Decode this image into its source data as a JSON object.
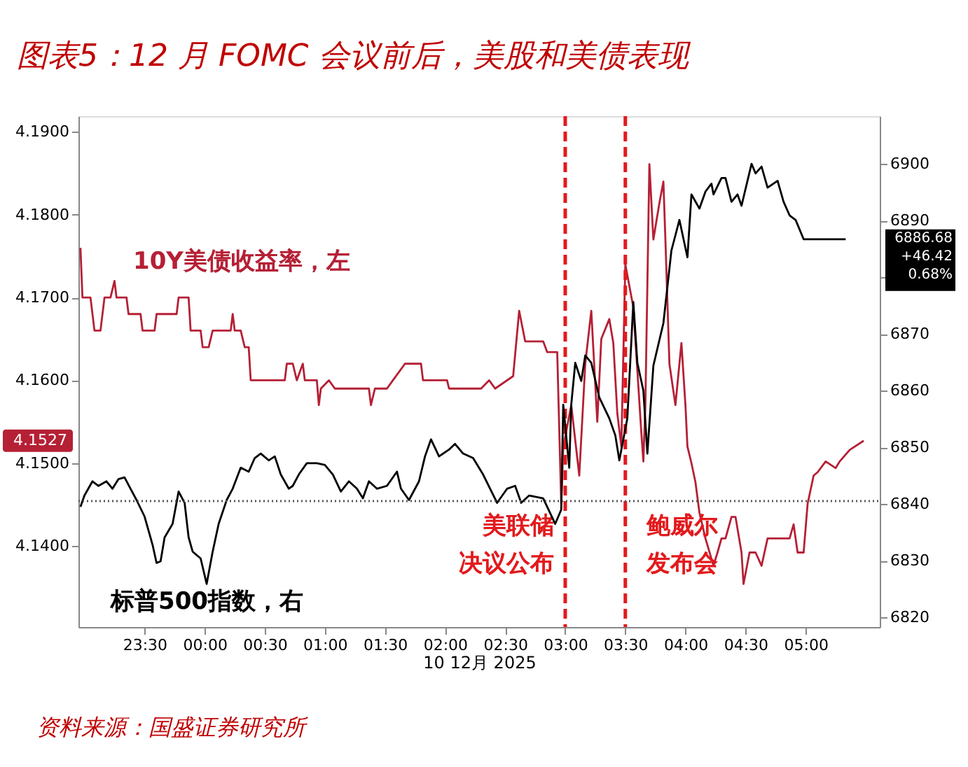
{
  "chart_data": {
    "type": "line",
    "title": "图表5：12 月 FOMC 会议前后，美股和美债表现",
    "xlabel": "10 12月 2025",
    "xlim": [
      "2025-12-09T22:57",
      "2025-12-10T05:37"
    ],
    "xticks": [
      {
        "value": "2025-12-09T23:30",
        "label": "23:30"
      },
      {
        "value": "2025-12-10T00:00",
        "label": "00:00"
      },
      {
        "value": "2025-12-10T00:30",
        "label": "00:30"
      },
      {
        "value": "2025-12-10T01:00",
        "label": "01:00"
      },
      {
        "value": "2025-12-10T01:30",
        "label": "01:30"
      },
      {
        "value": "2025-12-10T02:00",
        "label": "02:00"
      },
      {
        "value": "2025-12-10T02:30",
        "label": "02:30"
      },
      {
        "value": "2025-12-10T03:00",
        "label": "03:00"
      },
      {
        "value": "2025-12-10T03:30",
        "label": "03:30"
      },
      {
        "value": "2025-12-10T04:00",
        "label": "04:00"
      },
      {
        "value": "2025-12-10T04:30",
        "label": "04:30"
      },
      {
        "value": "2025-12-10T05:00",
        "label": "05:00"
      }
    ],
    "ylim": [
      4.1302,
      4.1919
    ],
    "yticks": [
      {
        "value": 4.14,
        "label": "4.1400"
      },
      {
        "value": 4.15,
        "label": "4.1500"
      },
      {
        "value": 4.16,
        "label": "4.1600"
      },
      {
        "value": 4.17,
        "label": "4.1700"
      },
      {
        "value": 4.18,
        "label": "4.1800"
      },
      {
        "value": 4.19,
        "label": "4.1900"
      }
    ],
    "y2lim": [
      6818.3,
      6908.4
    ],
    "y2ticks": [
      6820,
      6830,
      6840,
      6850,
      6860,
      6870,
      {
        "value": 6880,
        "label": null
      },
      6890,
      6900
    ],
    "series": [
      {
        "name": "10Y美债收益率，左",
        "color": "#b52035",
        "x": [
          "2025-12-09T22:58",
          "2025-12-09T22:59",
          "2025-12-09T23:03",
          "2025-12-09T23:05",
          "2025-12-09T23:08",
          "2025-12-09T23:10",
          "2025-12-09T23:13",
          "2025-12-09T23:15",
          "2025-12-09T23:16",
          "2025-12-09T23:21",
          "2025-12-09T23:22",
          "2025-12-09T23:28",
          "2025-12-09T23:29",
          "2025-12-09T23:35",
          "2025-12-09T23:36",
          "2025-12-09T23:46",
          "2025-12-09T23:47",
          "2025-12-09T23:52",
          "2025-12-09T23:53",
          "2025-12-09T23:58",
          "2025-12-09T23:59",
          "2025-12-10T00:02",
          "2025-12-10T00:04",
          "2025-12-10T00:13",
          "2025-12-10T00:14",
          "2025-12-10T00:15",
          "2025-12-10T00:18",
          "2025-12-10T00:20",
          "2025-12-10T00:22",
          "2025-12-10T00:23",
          "2025-12-10T00:40",
          "2025-12-10T00:41",
          "2025-12-10T00:44",
          "2025-12-10T00:46",
          "2025-12-10T00:49",
          "2025-12-10T00:50",
          "2025-12-10T00:56",
          "2025-12-10T00:57",
          "2025-12-10T00:58",
          "2025-12-10T01:02",
          "2025-12-10T01:05",
          "2025-12-10T01:22",
          "2025-12-10T01:23",
          "2025-12-10T01:25",
          "2025-12-10T01:31",
          "2025-12-10T01:34",
          "2025-12-10T01:40",
          "2025-12-10T01:48",
          "2025-12-10T01:49",
          "2025-12-10T02:01",
          "2025-12-10T02:02",
          "2025-12-10T02:18",
          "2025-12-10T02:22",
          "2025-12-10T02:25",
          "2025-12-10T02:34",
          "2025-12-10T02:37",
          "2025-12-10T02:40",
          "2025-12-10T02:49",
          "2025-12-10T02:51",
          "2025-12-10T02:56",
          "2025-12-10T02:58",
          "2025-12-10T02:59",
          "2025-12-10T03:03",
          "2025-12-10T03:07",
          "2025-12-10T03:10",
          "2025-12-10T03:13",
          "2025-12-10T03:16",
          "2025-12-10T03:18",
          "2025-12-10T03:22",
          "2025-12-10T03:24",
          "2025-12-10T03:26",
          "2025-12-10T03:28",
          "2025-12-10T03:30",
          "2025-12-10T03:34",
          "2025-12-10T03:38",
          "2025-12-10T03:39",
          "2025-12-10T03:40",
          "2025-12-10T03:42",
          "2025-12-10T03:44",
          "2025-12-10T03:47",
          "2025-12-10T03:49",
          "2025-12-10T03:50",
          "2025-12-10T03:52",
          "2025-12-10T03:55",
          "2025-12-10T03:58",
          "2025-12-10T04:00",
          "2025-12-10T04:01",
          "2025-12-10T04:03",
          "2025-12-10T04:05",
          "2025-12-10T04:07",
          "2025-12-10T04:10",
          "2025-12-10T04:14",
          "2025-12-10T04:16",
          "2025-12-10T04:18",
          "2025-12-10T04:20",
          "2025-12-10T04:23",
          "2025-12-10T04:25",
          "2025-12-10T04:28",
          "2025-12-10T04:29",
          "2025-12-10T04:32",
          "2025-12-10T04:35",
          "2025-12-10T04:38",
          "2025-12-10T04:41",
          "2025-12-10T04:46",
          "2025-12-10T04:52",
          "2025-12-10T04:54",
          "2025-12-10T04:56",
          "2025-12-10T04:59",
          "2025-12-10T05:01",
          "2025-12-10T05:04",
          "2025-12-10T05:06",
          "2025-12-10T05:10",
          "2025-12-10T05:15",
          "2025-12-10T05:17",
          "2025-12-10T05:22",
          "2025-12-10T05:29"
        ],
        "values": [
          4.176,
          4.17,
          4.17,
          4.166,
          4.166,
          4.17,
          4.17,
          4.172,
          4.17,
          4.17,
          4.168,
          4.168,
          4.166,
          4.166,
          4.168,
          4.168,
          4.17,
          4.17,
          4.166,
          4.166,
          4.164,
          4.164,
          4.166,
          4.166,
          4.168,
          4.166,
          4.166,
          4.164,
          4.164,
          4.16,
          4.16,
          4.162,
          4.162,
          4.16,
          4.162,
          4.16,
          4.16,
          4.157,
          4.159,
          4.16,
          4.159,
          4.159,
          4.157,
          4.159,
          4.159,
          4.16,
          4.162,
          4.162,
          4.16,
          4.16,
          4.159,
          4.159,
          4.16,
          4.159,
          4.1605,
          4.1684,
          4.1647,
          4.1647,
          4.1634,
          4.1634,
          4.145,
          4.1519,
          4.157,
          4.1485,
          4.162,
          4.1684,
          4.155,
          4.165,
          4.1674,
          4.1645,
          4.156,
          4.152,
          4.174,
          4.1688,
          4.1536,
          4.1502,
          4.157,
          4.1861,
          4.177,
          4.1814,
          4.184,
          4.177,
          4.162,
          4.157,
          4.1645,
          4.157,
          4.152,
          4.15,
          4.1477,
          4.144,
          4.1409,
          4.1376,
          4.1392,
          4.1409,
          4.1409,
          4.1435,
          4.1435,
          4.1392,
          4.1354,
          4.1392,
          4.1392,
          4.1376,
          4.1409,
          4.1409,
          4.1409,
          4.1426,
          4.1392,
          4.1392,
          4.1451,
          4.1485,
          4.1489,
          4.1502,
          4.1494,
          4.1502,
          4.1516,
          4.1527
        ]
      },
      {
        "name": "标普500指数，右",
        "color": "#000000",
        "axis": "y2",
        "x": [
          "2025-12-09T22:58",
          "2025-12-09T23:00",
          "2025-12-09T23:04",
          "2025-12-09T23:07",
          "2025-12-09T23:11",
          "2025-12-09T23:14",
          "2025-12-09T23:17",
          "2025-12-09T23:20",
          "2025-12-09T23:23",
          "2025-12-09T23:26",
          "2025-12-09T23:30",
          "2025-12-09T23:34",
          "2025-12-09T23:36",
          "2025-12-09T23:38",
          "2025-12-09T23:40",
          "2025-12-09T23:44",
          "2025-12-09T23:47",
          "2025-12-09T23:50",
          "2025-12-09T23:52",
          "2025-12-09T23:54",
          "2025-12-09T23:58",
          "2025-12-10T00:01",
          "2025-12-10T00:04",
          "2025-12-10T00:07",
          "2025-12-10T00:11",
          "2025-12-10T00:14",
          "2025-12-10T00:18",
          "2025-12-10T00:22",
          "2025-12-10T00:25",
          "2025-12-10T00:28",
          "2025-12-10T00:32",
          "2025-12-10T00:35",
          "2025-12-10T00:38",
          "2025-12-10T00:42",
          "2025-12-10T00:44",
          "2025-12-10T00:47",
          "2025-12-10T00:51",
          "2025-12-10T00:56",
          "2025-12-10T01:00",
          "2025-12-10T01:04",
          "2025-12-10T01:08",
          "2025-12-10T01:12",
          "2025-12-10T01:16",
          "2025-12-10T01:19",
          "2025-12-10T01:22",
          "2025-12-10T01:26",
          "2025-12-10T01:31",
          "2025-12-10T01:36",
          "2025-12-10T01:38",
          "2025-12-10T01:42",
          "2025-12-10T01:47",
          "2025-12-10T01:50",
          "2025-12-10T01:53",
          "2025-12-10T01:57",
          "2025-12-10T02:02",
          "2025-12-10T02:05",
          "2025-12-10T02:09",
          "2025-12-10T02:14",
          "2025-12-10T02:19",
          "2025-12-10T02:26",
          "2025-12-10T02:31",
          "2025-12-10T02:35",
          "2025-12-10T02:38",
          "2025-12-10T02:42",
          "2025-12-10T02:49",
          "2025-12-10T02:55",
          "2025-12-10T02:58",
          "2025-12-10T02:59",
          "2025-12-10T03:02",
          "2025-12-10T03:03",
          "2025-12-10T03:05",
          "2025-12-10T03:08",
          "2025-12-10T03:10",
          "2025-12-10T03:13",
          "2025-12-10T03:17",
          "2025-12-10T03:22",
          "2025-12-10T03:25",
          "2025-12-10T03:27",
          "2025-12-10T03:31",
          "2025-12-10T03:34",
          "2025-12-10T03:36",
          "2025-12-10T03:39",
          "2025-12-10T03:41",
          "2025-12-10T03:44",
          "2025-12-10T03:49",
          "2025-12-10T03:53",
          "2025-12-10T03:57",
          "2025-12-10T04:01",
          "2025-12-10T04:03",
          "2025-12-10T04:07",
          "2025-12-10T04:10",
          "2025-12-10T04:13",
          "2025-12-10T04:14",
          "2025-12-10T04:18",
          "2025-12-10T04:20",
          "2025-12-10T04:23",
          "2025-12-10T04:26",
          "2025-12-10T04:28",
          "2025-12-10T04:33",
          "2025-12-10T04:35",
          "2025-12-10T04:38",
          "2025-12-10T04:41",
          "2025-12-10T04:46",
          "2025-12-10T04:49",
          "2025-12-10T04:52",
          "2025-12-10T04:55",
          "2025-12-10T04:59",
          "2025-12-10T05:01",
          "2025-12-10T05:20"
        ],
        "values": [
          6839.5,
          6841.5,
          6844.0,
          6843.2,
          6844.0,
          6842.7,
          6844.4,
          6844.7,
          6842.7,
          6840.7,
          6837.8,
          6832.8,
          6829.6,
          6829.9,
          6834.1,
          6836.5,
          6842.2,
          6840.2,
          6834.1,
          6831.6,
          6830.4,
          6825.9,
          6831.6,
          6836.5,
          6840.7,
          6842.7,
          6846.4,
          6845.7,
          6848.1,
          6848.9,
          6847.7,
          6848.4,
          6845.2,
          6842.7,
          6843.2,
          6845.2,
          6847.2,
          6847.2,
          6846.9,
          6845.2,
          6842.2,
          6844.0,
          6842.7,
          6841.0,
          6844.0,
          6842.7,
          6843.2,
          6845.7,
          6842.7,
          6840.7,
          6844.0,
          6848.4,
          6851.4,
          6848.4,
          6849.6,
          6850.6,
          6848.9,
          6848.1,
          6845.2,
          6840.2,
          6842.7,
          6843.2,
          6840.2,
          6841.5,
          6841.0,
          6836.5,
          6839.0,
          6857.5,
          6846.4,
          6857.5,
          6864.9,
          6861.7,
          6866.2,
          6864.9,
          6858.8,
          6855.1,
          6852.1,
          6847.7,
          6855.1,
          6875.6,
          6864.9,
          6860.0,
          6848.9,
          6864.4,
          6871.9,
          6884.7,
          6890.1,
          6883.5,
          6894.6,
          6892.1,
          6895.1,
          6896.5,
          6894.6,
          6897.5,
          6897.5,
          6893.3,
          6894.6,
          6892.6,
          6900.0,
          6898.3,
          6899.5,
          6895.8,
          6897.0,
          6893.3,
          6890.9,
          6890.1,
          6886.7,
          6886.7,
          6886.7
        ]
      }
    ],
    "ref_lines": [
      {
        "axis": "x",
        "value": "2025-12-10T03:00",
        "label": "美联储决议公布",
        "color": "#e3191c",
        "line_style": "dashed"
      },
      {
        "axis": "x",
        "value": "2025-12-10T03:30",
        "label": "鲍威尔发布会",
        "color": "#e3191c",
        "line_style": "dashed"
      },
      {
        "axis": "y2",
        "value": 6840.51,
        "color": "#555555",
        "line_style": "dotted"
      }
    ],
    "annotations": [
      "4.1527",
      "6886.68\n+46.42\n0.68%",
      "资料来源：国盛证券研究所"
    ],
    "grid": false,
    "marker": "none",
    "line_style": "solid"
  }
}
